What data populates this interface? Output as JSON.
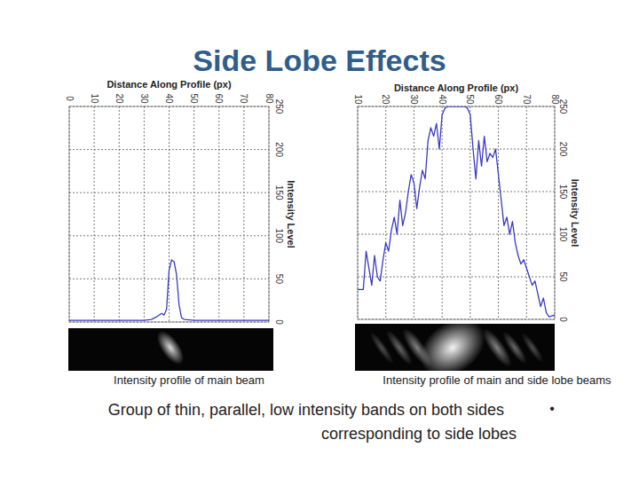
{
  "title": "Side Lobe Effects",
  "chart_data": [
    {
      "type": "line",
      "x_label": "Distance Along Profile (px)",
      "y_label": "Intensity Level",
      "x": [
        0,
        10,
        20,
        30,
        33,
        35,
        37,
        38,
        39,
        40,
        41,
        42,
        43,
        44,
        45,
        46,
        50,
        60,
        70,
        80
      ],
      "values": [
        2,
        2,
        2,
        2,
        3,
        6,
        10,
        8,
        15,
        60,
        72,
        70,
        55,
        20,
        5,
        3,
        2,
        2,
        2,
        2
      ],
      "color": "#3a3ac8",
      "xlim": [
        0,
        80
      ],
      "xticks": [
        0,
        10,
        20,
        30,
        40,
        50,
        60,
        70,
        80
      ],
      "ylim": [
        0,
        250
      ],
      "yticks": [
        0,
        50,
        100,
        150,
        200,
        250
      ],
      "grid": true
    },
    {
      "type": "line",
      "x_label": "Distance Along Profile (px)",
      "y_label": "Intensity Level",
      "x": [
        10,
        12,
        13,
        14,
        15,
        16,
        17,
        18,
        19,
        20,
        21,
        22,
        23,
        24,
        25,
        26,
        27,
        28,
        29,
        30,
        31,
        32,
        33,
        34,
        35,
        36,
        37,
        38,
        39,
        40,
        41,
        42,
        44,
        46,
        48,
        49,
        50,
        51,
        52,
        53,
        54,
        55,
        56,
        57,
        58,
        59,
        60,
        61,
        62,
        63,
        64,
        65,
        66,
        67,
        68,
        69,
        70,
        71,
        72,
        73,
        74,
        75,
        76,
        77,
        78,
        79,
        80
      ],
      "values": [
        35,
        35,
        80,
        60,
        40,
        75,
        50,
        45,
        70,
        90,
        80,
        105,
        120,
        100,
        140,
        110,
        125,
        150,
        170,
        160,
        130,
        155,
        175,
        165,
        210,
        225,
        215,
        230,
        200,
        240,
        248,
        250,
        250,
        250,
        250,
        248,
        240,
        200,
        165,
        210,
        180,
        215,
        185,
        195,
        190,
        200,
        170,
        140,
        110,
        120,
        100,
        115,
        90,
        75,
        65,
        70,
        60,
        50,
        40,
        45,
        30,
        15,
        25,
        8,
        3,
        4,
        5
      ],
      "color": "#3a3ac8",
      "xlim": [
        10,
        80
      ],
      "xticks": [
        10,
        20,
        30,
        40,
        50,
        60,
        70,
        80
      ],
      "ylim": [
        0,
        250
      ],
      "yticks": [
        0,
        50,
        100,
        150,
        200,
        250
      ],
      "grid": true
    }
  ],
  "captions": [
    "Intensity profile of main beam",
    "Intensity profile of main and side lobe beams"
  ],
  "footer": {
    "lines": [
      "Group of thin, parallel, low intensity bands on both sides",
      "corresponding to side lobes"
    ],
    "bullet": "•"
  }
}
